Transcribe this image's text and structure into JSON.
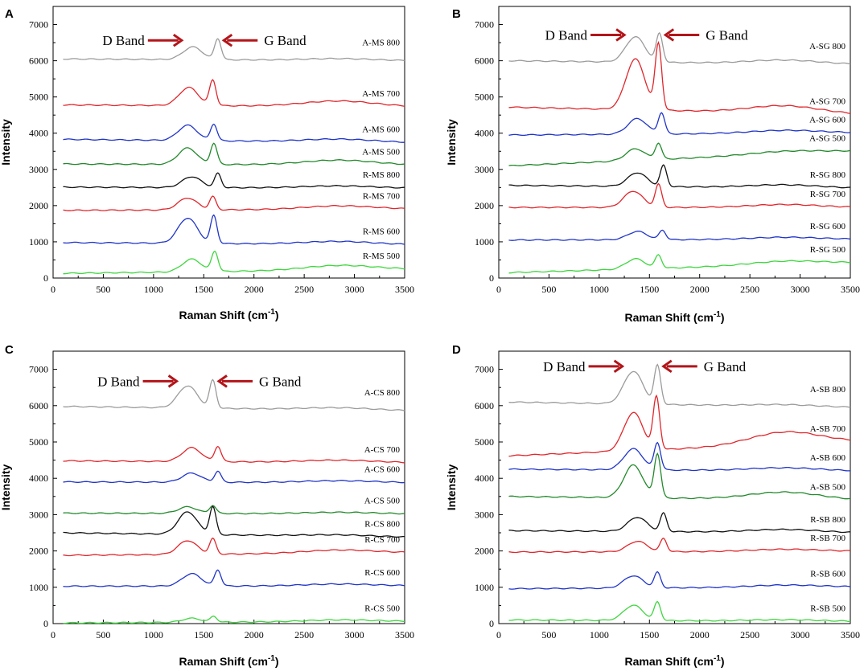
{
  "colors": {
    "gray": "#9b9b9b",
    "red": "#e0262b",
    "blue": "#2035c8",
    "green": "#21892a",
    "black": "#111111",
    "lime": "#3fd63f",
    "arrow": "#b2151a"
  },
  "chart_data": [
    {
      "panel": "A",
      "type": "line",
      "xlabel": "Raman Shift (cm",
      "xlabel_sup": "-1",
      "xlabel_tail": ")",
      "ylabel": "Intensity",
      "xlim": [
        0,
        3500
      ],
      "ylim": [
        0,
        7500
      ],
      "xticks": [
        0,
        500,
        1000,
        1500,
        2000,
        2500,
        3000,
        3500
      ],
      "yticks": [
        0,
        1000,
        2000,
        3000,
        4000,
        5000,
        6000,
        7000
      ],
      "band_annotations": {
        "d_band": "D Band",
        "g_band": "G Band"
      },
      "series": [
        {
          "name": "A-MS 800",
          "color": "gray",
          "baseline": 6050,
          "end": 6000,
          "d_pos": 1390,
          "d_height": 350,
          "g_pos": 1640,
          "g_height": 580,
          "bump_height": 50
        },
        {
          "name": "A-MS 700",
          "color": "red",
          "baseline": 4780,
          "end": 4730,
          "d_pos": 1350,
          "d_height": 500,
          "g_pos": 1590,
          "g_height": 700,
          "bump_height": 150
        },
        {
          "name": "A-MS 600",
          "color": "blue",
          "baseline": 3830,
          "end": 3740,
          "d_pos": 1340,
          "d_height": 420,
          "g_pos": 1600,
          "g_height": 460,
          "bump_height": 80
        },
        {
          "name": "A-MS 500",
          "color": "green",
          "baseline": 3150,
          "end": 3120,
          "d_pos": 1340,
          "d_height": 450,
          "g_pos": 1600,
          "g_height": 580,
          "bump_height": 130
        },
        {
          "name": "R-MS 800",
          "color": "black",
          "baseline": 2510,
          "end": 2480,
          "d_pos": 1380,
          "d_height": 300,
          "g_pos": 1640,
          "g_height": 390,
          "bump_height": 60
        },
        {
          "name": "R-MS 700",
          "color": "red",
          "baseline": 1870,
          "end": 1900,
          "d_pos": 1340,
          "d_height": 330,
          "g_pos": 1590,
          "g_height": 360,
          "bump_height": 100
        },
        {
          "name": "R-MS 600",
          "color": "blue",
          "baseline": 980,
          "end": 920,
          "d_pos": 1340,
          "d_height": 700,
          "g_pos": 1600,
          "g_height": 760,
          "bump_height": 80
        },
        {
          "name": "R-MS 500",
          "color": "lime",
          "baseline": 130,
          "end": 240,
          "d_pos": 1380,
          "d_height": 350,
          "g_pos": 1610,
          "g_height": 550,
          "bump_height": 130
        }
      ]
    },
    {
      "panel": "B",
      "type": "line",
      "xlabel": "Raman Shift (cm",
      "xlabel_sup": "-1",
      "xlabel_tail": ")",
      "ylabel": "Intensity",
      "xlim": [
        0,
        3500
      ],
      "ylim": [
        0,
        7500
      ],
      "xticks": [
        0,
        500,
        1000,
        1500,
        2000,
        2500,
        3000,
        3500
      ],
      "yticks": [
        0,
        1000,
        2000,
        3000,
        4000,
        5000,
        6000,
        7000
      ],
      "band_annotations": {
        "d_band": "D Band",
        "g_band": "G Band"
      },
      "series": [
        {
          "name": "A-SG 800",
          "color": "gray",
          "baseline": 6000,
          "end": 5900,
          "d_pos": 1360,
          "d_height": 700,
          "g_pos": 1600,
          "g_height": 780,
          "bump_height": 100
        },
        {
          "name": "A-SG 700",
          "color": "red",
          "baseline": 4720,
          "end": 4520,
          "d_pos": 1360,
          "d_height": 1400,
          "g_pos": 1590,
          "g_height": 1800,
          "bump_height": 200
        },
        {
          "name": "A-SG 600",
          "color": "blue",
          "baseline": 3950,
          "end": 4010,
          "d_pos": 1380,
          "d_height": 430,
          "g_pos": 1620,
          "g_height": 580,
          "bump_height": 80
        },
        {
          "name": "A-SG 500",
          "color": "green",
          "baseline": 3100,
          "end": 3500,
          "d_pos": 1360,
          "d_height": 320,
          "g_pos": 1590,
          "g_height": 440,
          "bump_height": 80
        },
        {
          "name": "R-SG 800",
          "color": "black",
          "baseline": 2560,
          "end": 2480,
          "d_pos": 1380,
          "d_height": 380,
          "g_pos": 1640,
          "g_height": 580,
          "bump_height": 80
        },
        {
          "name": "R-SG 700",
          "color": "red",
          "baseline": 1950,
          "end": 1950,
          "d_pos": 1340,
          "d_height": 450,
          "g_pos": 1590,
          "g_height": 630,
          "bump_height": 80
        },
        {
          "name": "R-SG 600",
          "color": "blue",
          "baseline": 1050,
          "end": 1070,
          "d_pos": 1380,
          "d_height": 230,
          "g_pos": 1630,
          "g_height": 260,
          "bump_height": 60
        },
        {
          "name": "R-SG 500",
          "color": "lime",
          "baseline": 150,
          "end": 420,
          "d_pos": 1360,
          "d_height": 280,
          "g_pos": 1590,
          "g_height": 360,
          "bump_height": 100
        }
      ]
    },
    {
      "panel": "C",
      "type": "line",
      "xlabel": "Raman Shift (cm",
      "xlabel_sup": "-1",
      "xlabel_tail": ")",
      "ylabel": "Intensity",
      "xlim": [
        0,
        3500
      ],
      "ylim": [
        0,
        7500
      ],
      "xticks": [
        0,
        500,
        1000,
        1500,
        2000,
        2500,
        3000,
        3500
      ],
      "yticks": [
        0,
        1000,
        2000,
        3000,
        4000,
        5000,
        6000,
        7000
      ],
      "band_annotations": {
        "d_band": "D Band",
        "g_band": "G Band"
      },
      "series": [
        {
          "name": "A-CS 800",
          "color": "gray",
          "baseline": 5980,
          "end": 5860,
          "d_pos": 1340,
          "d_height": 610,
          "g_pos": 1590,
          "g_height": 760,
          "bump_height": 60
        },
        {
          "name": "A-CS 700",
          "color": "red",
          "baseline": 4480,
          "end": 4430,
          "d_pos": 1380,
          "d_height": 380,
          "g_pos": 1640,
          "g_height": 420,
          "bump_height": 60
        },
        {
          "name": "A-CS 600",
          "color": "blue",
          "baseline": 3900,
          "end": 3880,
          "d_pos": 1380,
          "d_height": 250,
          "g_pos": 1640,
          "g_height": 300,
          "bump_height": 50
        },
        {
          "name": "A-CS 500",
          "color": "green",
          "baseline": 3040,
          "end": 3020,
          "d_pos": 1340,
          "d_height": 180,
          "g_pos": 1590,
          "g_height": 220,
          "bump_height": 40
        },
        {
          "name": "R-CS 800",
          "color": "black",
          "baseline": 2500,
          "end": 2380,
          "d_pos": 1340,
          "d_height": 620,
          "g_pos": 1590,
          "g_height": 760,
          "bump_height": 40
        },
        {
          "name": "R-CS 700",
          "color": "red",
          "baseline": 1880,
          "end": 1950,
          "d_pos": 1340,
          "d_height": 380,
          "g_pos": 1590,
          "g_height": 420,
          "bump_height": 90
        },
        {
          "name": "R-CS 600",
          "color": "blue",
          "baseline": 1030,
          "end": 1040,
          "d_pos": 1380,
          "d_height": 340,
          "g_pos": 1640,
          "g_height": 440,
          "bump_height": 50
        },
        {
          "name": "R-CS 500",
          "color": "lime",
          "baseline": 20,
          "end": 60,
          "d_pos": 1380,
          "d_height": 110,
          "g_pos": 1600,
          "g_height": 160,
          "bump_height": 50
        }
      ]
    },
    {
      "panel": "D",
      "type": "line",
      "xlabel": "Raman Shift (cm",
      "xlabel_sup": "-1",
      "xlabel_tail": ")",
      "ylabel": "Intensity",
      "xlim": [
        0,
        3500
      ],
      "ylim": [
        0,
        7500
      ],
      "xticks": [
        0,
        500,
        1000,
        1500,
        2000,
        2500,
        3000,
        3500
      ],
      "yticks": [
        0,
        1000,
        2000,
        3000,
        4000,
        5000,
        6000,
        7000
      ],
      "band_annotations": {
        "d_band": "D Band",
        "g_band": "G Band"
      },
      "series": [
        {
          "name": "A-SB 800",
          "color": "gray",
          "baseline": 6100,
          "end": 5950,
          "d_pos": 1340,
          "d_height": 900,
          "g_pos": 1580,
          "g_height": 1050,
          "bump_height": 50
        },
        {
          "name": "A-SB 700",
          "color": "red",
          "baseline": 4620,
          "end": 5000,
          "d_pos": 1340,
          "d_height": 1050,
          "g_pos": 1570,
          "g_height": 1430,
          "bump_height": 350
        },
        {
          "name": "A-SB 600",
          "color": "blue",
          "baseline": 4250,
          "end": 4200,
          "d_pos": 1340,
          "d_height": 580,
          "g_pos": 1580,
          "g_height": 740,
          "bump_height": 80
        },
        {
          "name": "A-SB 500",
          "color": "green",
          "baseline": 3500,
          "end": 3400,
          "d_pos": 1340,
          "d_height": 900,
          "g_pos": 1580,
          "g_height": 1200,
          "bump_height": 200
        },
        {
          "name": "R-SB 800",
          "color": "black",
          "baseline": 2560,
          "end": 2500,
          "d_pos": 1380,
          "d_height": 390,
          "g_pos": 1640,
          "g_height": 500,
          "bump_height": 80
        },
        {
          "name": "R-SB 700",
          "color": "red",
          "baseline": 1970,
          "end": 1990,
          "d_pos": 1380,
          "d_height": 290,
          "g_pos": 1640,
          "g_height": 360,
          "bump_height": 60
        },
        {
          "name": "R-SB 600",
          "color": "blue",
          "baseline": 960,
          "end": 1010,
          "d_pos": 1340,
          "d_height": 340,
          "g_pos": 1580,
          "g_height": 420,
          "bump_height": 60
        },
        {
          "name": "R-SB 500",
          "color": "lime",
          "baseline": 100,
          "end": 60,
          "d_pos": 1340,
          "d_height": 420,
          "g_pos": 1580,
          "g_height": 500,
          "bump_height": 40
        }
      ]
    }
  ]
}
